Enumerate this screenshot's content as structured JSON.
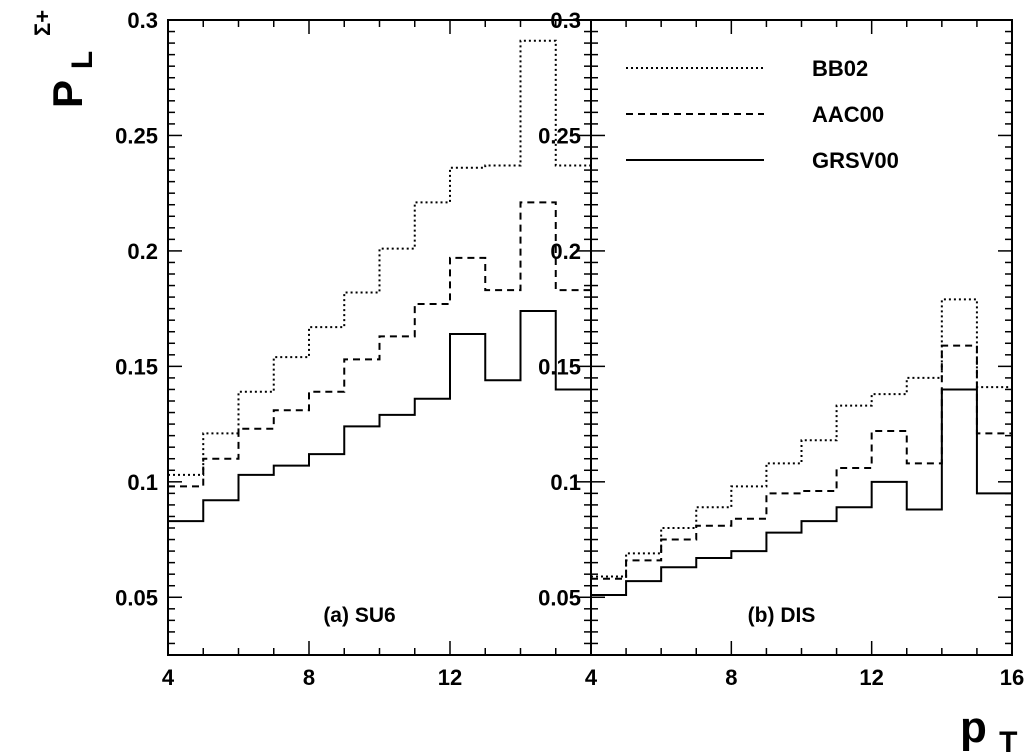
{
  "chart_data": {
    "type": "line",
    "step": true,
    "ylabel": {
      "main": "P",
      "sub": "L",
      "sup": "Σ+"
    },
    "xlabel": {
      "main": "p",
      "sub": "T"
    },
    "ylim": [
      0.025,
      0.3
    ],
    "yticks": [
      "0.05",
      "0.1",
      "0.15",
      "0.2",
      "0.25",
      "0.3"
    ],
    "legend": {
      "placement": "top-right",
      "entries": [
        {
          "series": "BB02",
          "label": "BB02",
          "style": "dotted"
        },
        {
          "series": "AAC00",
          "label": "AAC00",
          "style": "dashed"
        },
        {
          "series": "GRSV00",
          "label": "GRSV00",
          "style": "solid"
        }
      ]
    },
    "panels": [
      {
        "label": "(a) SU6",
        "xlim": [
          4,
          16
        ],
        "xticks": [
          "4",
          "8",
          "12"
        ],
        "bin_edges": [
          4,
          5,
          6,
          7,
          8,
          9,
          10,
          11,
          12,
          13,
          14,
          15,
          16
        ],
        "series": [
          {
            "name": "BB02",
            "values": [
              0.103,
              0.121,
              0.139,
              0.154,
              0.167,
              0.182,
              0.201,
              0.221,
              0.236,
              0.237,
              0.291,
              0.237
            ]
          },
          {
            "name": "AAC00",
            "values": [
              0.098,
              0.11,
              0.123,
              0.131,
              0.139,
              0.153,
              0.163,
              0.177,
              0.197,
              0.183,
              0.221,
              0.183
            ]
          },
          {
            "name": "GRSV00",
            "values": [
              0.083,
              0.092,
              0.103,
              0.107,
              0.112,
              0.124,
              0.129,
              0.136,
              0.164,
              0.144,
              0.174,
              0.14
            ]
          }
        ]
      },
      {
        "label": "(b) DIS",
        "xlim": [
          4,
          16
        ],
        "xticks": [
          "4",
          "8",
          "12",
          "16"
        ],
        "bin_edges": [
          4,
          5,
          6,
          7,
          8,
          9,
          10,
          11,
          12,
          13,
          14,
          15,
          16
        ],
        "series": [
          {
            "name": "BB02",
            "values": [
              0.059,
              0.069,
              0.08,
              0.089,
              0.098,
              0.108,
              0.118,
              0.133,
              0.138,
              0.145,
              0.179,
              0.141
            ]
          },
          {
            "name": "AAC00",
            "values": [
              0.058,
              0.066,
              0.075,
              0.081,
              0.084,
              0.095,
              0.096,
              0.106,
              0.122,
              0.108,
              0.159,
              0.121
            ]
          },
          {
            "name": "GRSV00",
            "values": [
              0.051,
              0.057,
              0.063,
              0.067,
              0.07,
              0.078,
              0.083,
              0.089,
              0.1,
              0.088,
              0.14,
              0.095
            ]
          }
        ]
      }
    ]
  }
}
